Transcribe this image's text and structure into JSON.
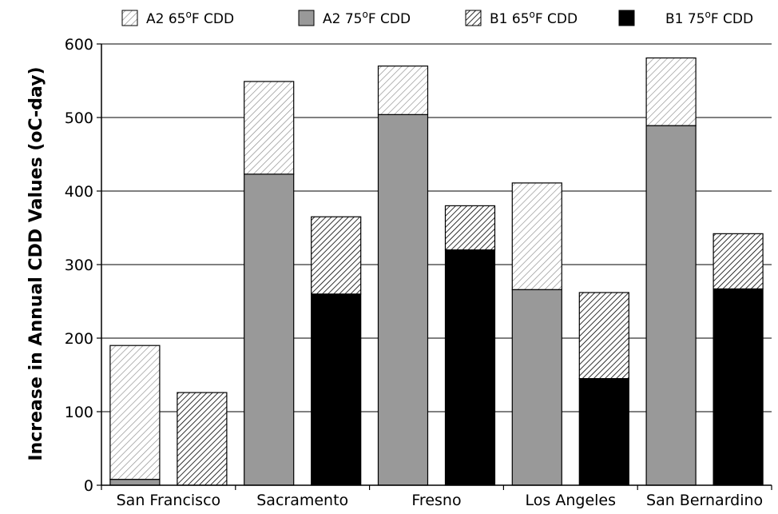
{
  "chart_data": {
    "type": "bar",
    "stacked": true,
    "title": "",
    "xlabel": "",
    "ylabel": "Increase in Annual CDD Values (oC-day)",
    "ylim": [
      0,
      600
    ],
    "yticks": [
      0,
      100,
      200,
      300,
      400,
      500,
      600
    ],
    "grid": true,
    "legend_position": "top",
    "categories": [
      "San Francisco",
      "Sacramento",
      "Fresno",
      "Los Angeles",
      "San Bernardino"
    ],
    "scenarios": [
      {
        "name": "A2",
        "segments": [
          {
            "series": "A2 75°F CDD",
            "values": [
              8,
              423,
              504,
              266,
              489
            ]
          },
          {
            "series": "A2 65°F CDD",
            "values": [
              190,
              549,
              570,
              411,
              581
            ]
          }
        ]
      },
      {
        "name": "B1",
        "segments": [
          {
            "series": "B1 75°F CDD",
            "values": [
              0,
              260,
              320,
              145,
              267
            ]
          },
          {
            "series": "B1 65°F CDD",
            "values": [
              126,
              365,
              380,
              262,
              342
            ]
          }
        ]
      }
    ],
    "legend": [
      {
        "name_prefix": "A2 65",
        "sup": "o",
        "name_suffix": "F CDD",
        "fill": "light-hatch"
      },
      {
        "name_prefix": "A2 75",
        "sup": "o",
        "name_suffix": "F CDD",
        "fill": "#999999"
      },
      {
        "name_prefix": "B1 65",
        "sup": "o",
        "name_suffix": "F CDD",
        "fill": "dark-hatch"
      },
      {
        "name_prefix": "B1 75",
        "sup": "o",
        "name_suffix": "F CDD",
        "fill": "#000000"
      }
    ]
  }
}
